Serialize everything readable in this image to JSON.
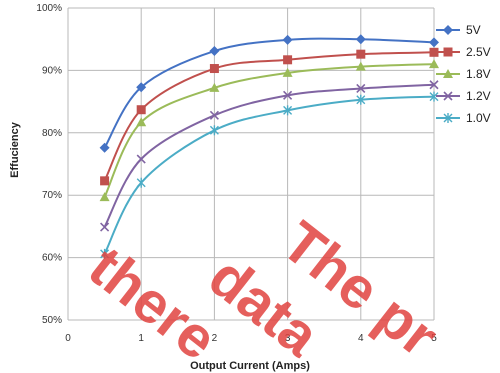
{
  "chart_data": {
    "type": "line",
    "title": "",
    "xlabel": "Output Current (Amps)",
    "ylabel": "Effuciency",
    "xlim": [
      0,
      5
    ],
    "ylim": [
      50,
      100
    ],
    "x_ticks": [
      "0",
      "1",
      "2",
      "3",
      "4",
      "5"
    ],
    "y_ticks": [
      "50%",
      "60%",
      "70%",
      "80%",
      "90%",
      "100%"
    ],
    "grid": true,
    "legend_position": "right",
    "x": [
      0.5,
      1,
      2,
      3,
      4,
      5
    ],
    "series": [
      {
        "name": "5V",
        "color": "#4472c4",
        "marker": "diamond",
        "values": [
          77.6,
          87.3,
          93.1,
          94.9,
          95.0,
          94.5
        ]
      },
      {
        "name": "2.5V",
        "color": "#c0504d",
        "marker": "square",
        "values": [
          72.3,
          83.7,
          90.3,
          91.7,
          92.6,
          92.9
        ]
      },
      {
        "name": "1.8V",
        "color": "#9bbb59",
        "marker": "triangle",
        "values": [
          69.7,
          81.7,
          87.2,
          89.6,
          90.6,
          91.0
        ]
      },
      {
        "name": "1.2V",
        "color": "#8064a2",
        "marker": "x",
        "values": [
          64.9,
          75.8,
          82.8,
          86.0,
          87.1,
          87.7
        ]
      },
      {
        "name": "1.0V",
        "color": "#4bacc6",
        "marker": "star",
        "values": [
          60.6,
          72.0,
          80.4,
          83.6,
          85.3,
          85.8
        ]
      }
    ]
  },
  "watermark": {
    "line1": "there",
    "line2": "data",
    "line3": "The pr"
  }
}
